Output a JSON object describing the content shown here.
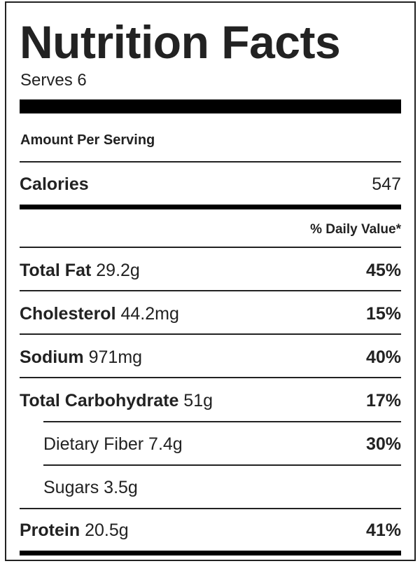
{
  "title": "Nutrition Facts",
  "serves": "Serves 6",
  "amount_per_serving": "Amount Per Serving",
  "calories": {
    "label": "Calories",
    "value": "547"
  },
  "daily_value_header": "% Daily Value*",
  "nutrients": [
    {
      "name": "Total Fat",
      "amount": "29.2g",
      "dv": "45%"
    },
    {
      "name": "Cholesterol",
      "amount": "44.2mg",
      "dv": "15%"
    },
    {
      "name": "Sodium",
      "amount": "971mg",
      "dv": "40%"
    },
    {
      "name": "Total Carbohydrate",
      "amount": "51g",
      "dv": "17%"
    },
    {
      "name": "Dietary Fiber",
      "amount": "7.4g",
      "dv": "30%"
    },
    {
      "name": "Sugars",
      "amount": "3.5g",
      "dv": ""
    },
    {
      "name": "Protein",
      "amount": "20.5g",
      "dv": "41%"
    }
  ]
}
